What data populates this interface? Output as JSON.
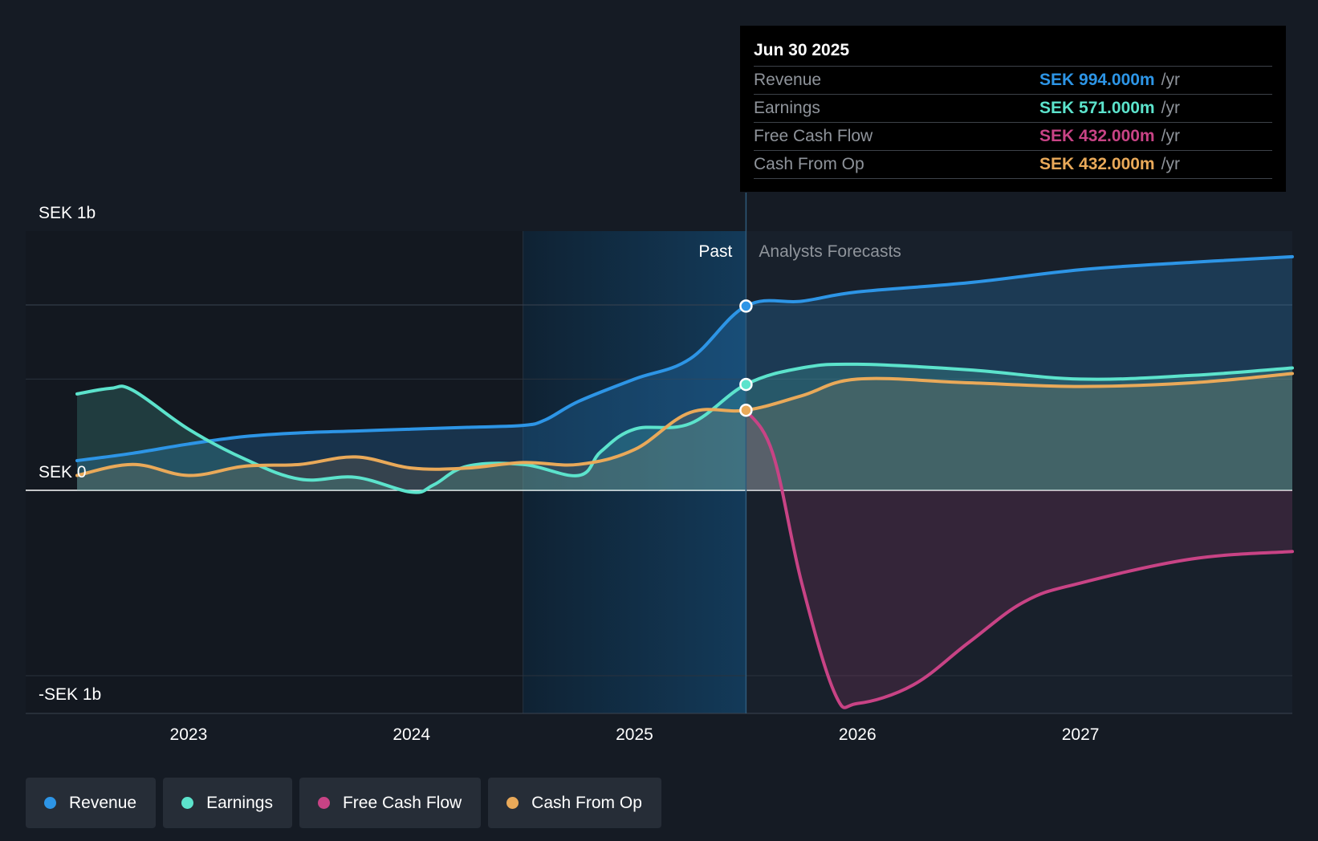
{
  "chart_data": {
    "type": "line",
    "title": "",
    "xlabel": "",
    "ylabel": "",
    "x_range": [
      2022.5,
      2027.95
    ],
    "ylim": [
      -1.2,
      1.3
    ],
    "units": "SEK billions",
    "y_ticks": [
      {
        "value": 1,
        "label": "SEK 1b"
      },
      {
        "value": 0,
        "label": "SEK 0"
      },
      {
        "value": -1,
        "label": "-SEK 1b"
      }
    ],
    "x_ticks": [
      {
        "value": 2023,
        "label": "2023"
      },
      {
        "value": 2024,
        "label": "2024"
      },
      {
        "value": 2025,
        "label": "2025"
      },
      {
        "value": 2026,
        "label": "2026"
      },
      {
        "value": 2027,
        "label": "2027"
      }
    ],
    "gridlines": [
      1.0,
      0.6,
      -1.0
    ],
    "highlight_range": [
      2024.5,
      2025.5
    ],
    "divider_x": 2025.5,
    "past_label": "Past",
    "forecast_label": "Analysts Forecasts",
    "series": [
      {
        "name": "Revenue",
        "color": "#2d95e6",
        "fill": "area",
        "points": [
          [
            2022.5,
            0.16
          ],
          [
            2022.75,
            0.2
          ],
          [
            2023,
            0.25
          ],
          [
            2023.25,
            0.29
          ],
          [
            2023.5,
            0.31
          ],
          [
            2023.75,
            0.32
          ],
          [
            2024,
            0.33
          ],
          [
            2024.25,
            0.34
          ],
          [
            2024.5,
            0.35
          ],
          [
            2024.6,
            0.38
          ],
          [
            2024.75,
            0.48
          ],
          [
            2025,
            0.6
          ],
          [
            2025.25,
            0.71
          ],
          [
            2025.5,
            0.994
          ],
          [
            2025.75,
            1.02
          ],
          [
            2026,
            1.07
          ],
          [
            2026.5,
            1.12
          ],
          [
            2027,
            1.19
          ],
          [
            2027.5,
            1.23
          ],
          [
            2027.95,
            1.26
          ]
        ]
      },
      {
        "name": "Earnings",
        "color": "#5ce3cc",
        "fill": "area",
        "points": [
          [
            2022.5,
            0.52
          ],
          [
            2022.65,
            0.55
          ],
          [
            2022.75,
            0.54
          ],
          [
            2023,
            0.33
          ],
          [
            2023.25,
            0.17
          ],
          [
            2023.5,
            0.06
          ],
          [
            2023.75,
            0.07
          ],
          [
            2024,
            -0.01
          ],
          [
            2024.1,
            0.03
          ],
          [
            2024.25,
            0.13
          ],
          [
            2024.5,
            0.14
          ],
          [
            2024.75,
            0.08
          ],
          [
            2024.85,
            0.21
          ],
          [
            2025,
            0.33
          ],
          [
            2025.25,
            0.36
          ],
          [
            2025.5,
            0.571
          ],
          [
            2025.75,
            0.66
          ],
          [
            2026,
            0.68
          ],
          [
            2026.5,
            0.65
          ],
          [
            2027,
            0.6
          ],
          [
            2027.5,
            0.62
          ],
          [
            2027.95,
            0.66
          ]
        ]
      },
      {
        "name": "Free Cash Flow",
        "color": "#c84385",
        "fill": "area",
        "points": [
          [
            2025.5,
            0.432
          ],
          [
            2025.62,
            0.2
          ],
          [
            2025.75,
            -0.5
          ],
          [
            2025.9,
            -1.1
          ],
          [
            2026,
            -1.15
          ],
          [
            2026.25,
            -1.05
          ],
          [
            2026.5,
            -0.82
          ],
          [
            2026.75,
            -0.6
          ],
          [
            2027,
            -0.5
          ],
          [
            2027.5,
            -0.37
          ],
          [
            2027.95,
            -0.33
          ]
        ]
      },
      {
        "name": "Cash From Op",
        "color": "#e9a959",
        "fill": "area",
        "points": [
          [
            2022.5,
            0.08
          ],
          [
            2022.75,
            0.14
          ],
          [
            2023,
            0.08
          ],
          [
            2023.25,
            0.13
          ],
          [
            2023.5,
            0.14
          ],
          [
            2023.75,
            0.18
          ],
          [
            2024,
            0.12
          ],
          [
            2024.25,
            0.12
          ],
          [
            2024.5,
            0.15
          ],
          [
            2024.75,
            0.14
          ],
          [
            2025,
            0.22
          ],
          [
            2025.25,
            0.42
          ],
          [
            2025.5,
            0.432
          ],
          [
            2025.75,
            0.51
          ],
          [
            2026,
            0.6
          ],
          [
            2026.5,
            0.58
          ],
          [
            2027,
            0.56
          ],
          [
            2027.5,
            0.58
          ],
          [
            2027.95,
            0.63
          ]
        ]
      }
    ],
    "markers": [
      {
        "series": "Revenue",
        "x": 2025.5,
        "y": 0.994
      },
      {
        "series": "Earnings",
        "x": 2025.5,
        "y": 0.571
      },
      {
        "series": "Cash From Op",
        "x": 2025.5,
        "y": 0.432
      }
    ]
  },
  "tooltip": {
    "date": "Jun 30 2025",
    "rows": [
      {
        "label": "Revenue",
        "value": "SEK 994.000m",
        "unit": "/yr",
        "color": "#2d95e6"
      },
      {
        "label": "Earnings",
        "value": "SEK 571.000m",
        "unit": "/yr",
        "color": "#5ce3cc"
      },
      {
        "label": "Free Cash Flow",
        "value": "SEK 432.000m",
        "unit": "/yr",
        "color": "#c84385"
      },
      {
        "label": "Cash From Op",
        "value": "SEK 432.000m",
        "unit": "/yr",
        "color": "#e9a959"
      }
    ]
  },
  "legend": [
    {
      "label": "Revenue",
      "color": "#2d95e6"
    },
    {
      "label": "Earnings",
      "color": "#5ce3cc"
    },
    {
      "label": "Free Cash Flow",
      "color": "#c84385"
    },
    {
      "label": "Cash From Op",
      "color": "#e9a959"
    }
  ]
}
